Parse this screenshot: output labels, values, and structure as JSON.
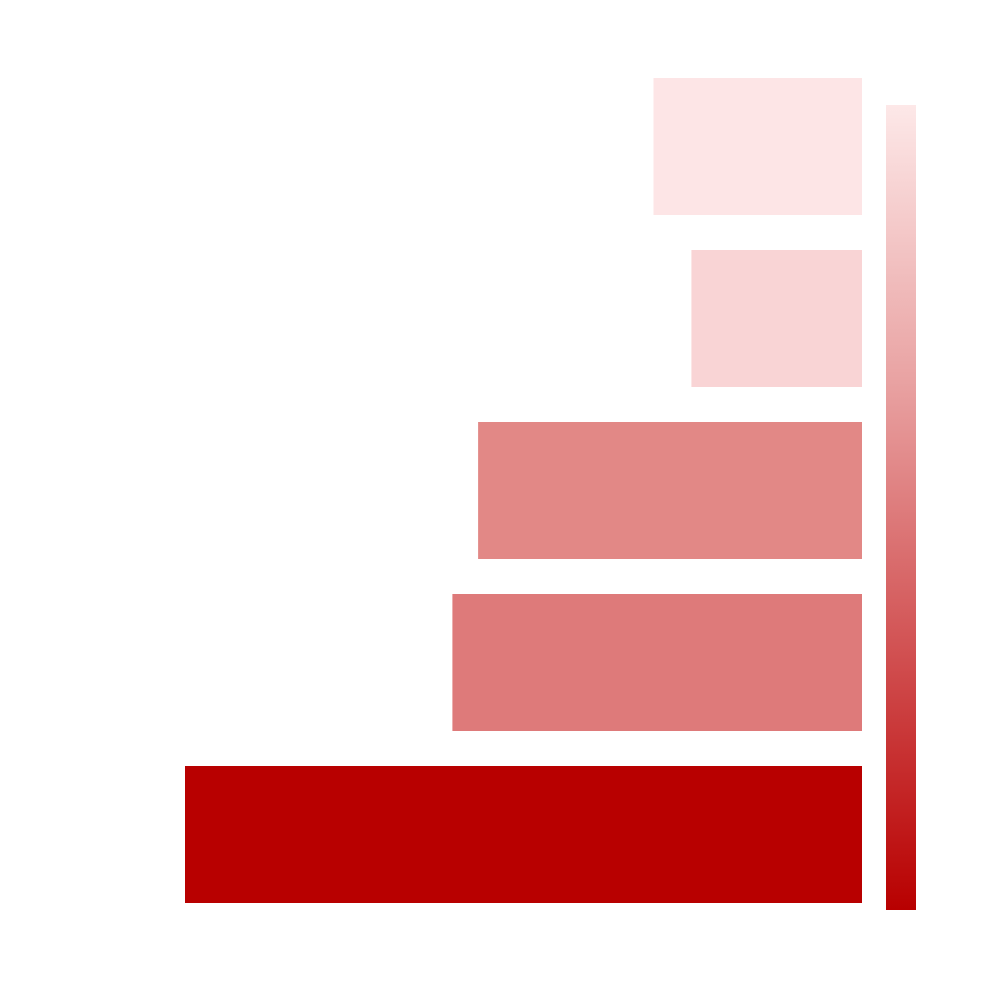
{
  "chart_data": {
    "type": "bar",
    "orientation": "horizontal",
    "categories": [
      "",
      "",
      "",
      "",
      ""
    ],
    "values": [
      100,
      60.5,
      56.7,
      25.2,
      30.8
    ],
    "colors": [
      "#b80000",
      "#de7a7a",
      "#e28886",
      "#f9d4d5",
      "#fde5e6"
    ],
    "title": "",
    "xlabel": "",
    "ylabel": "",
    "xlim": [
      0,
      100
    ],
    "grid": false,
    "legend": "none",
    "colorbar": {
      "placement": "right",
      "range": [
        0,
        100
      ],
      "colors": [
        "#b80000",
        "#d25354",
        "#e9a3a3",
        "#fde8e8"
      ]
    }
  }
}
